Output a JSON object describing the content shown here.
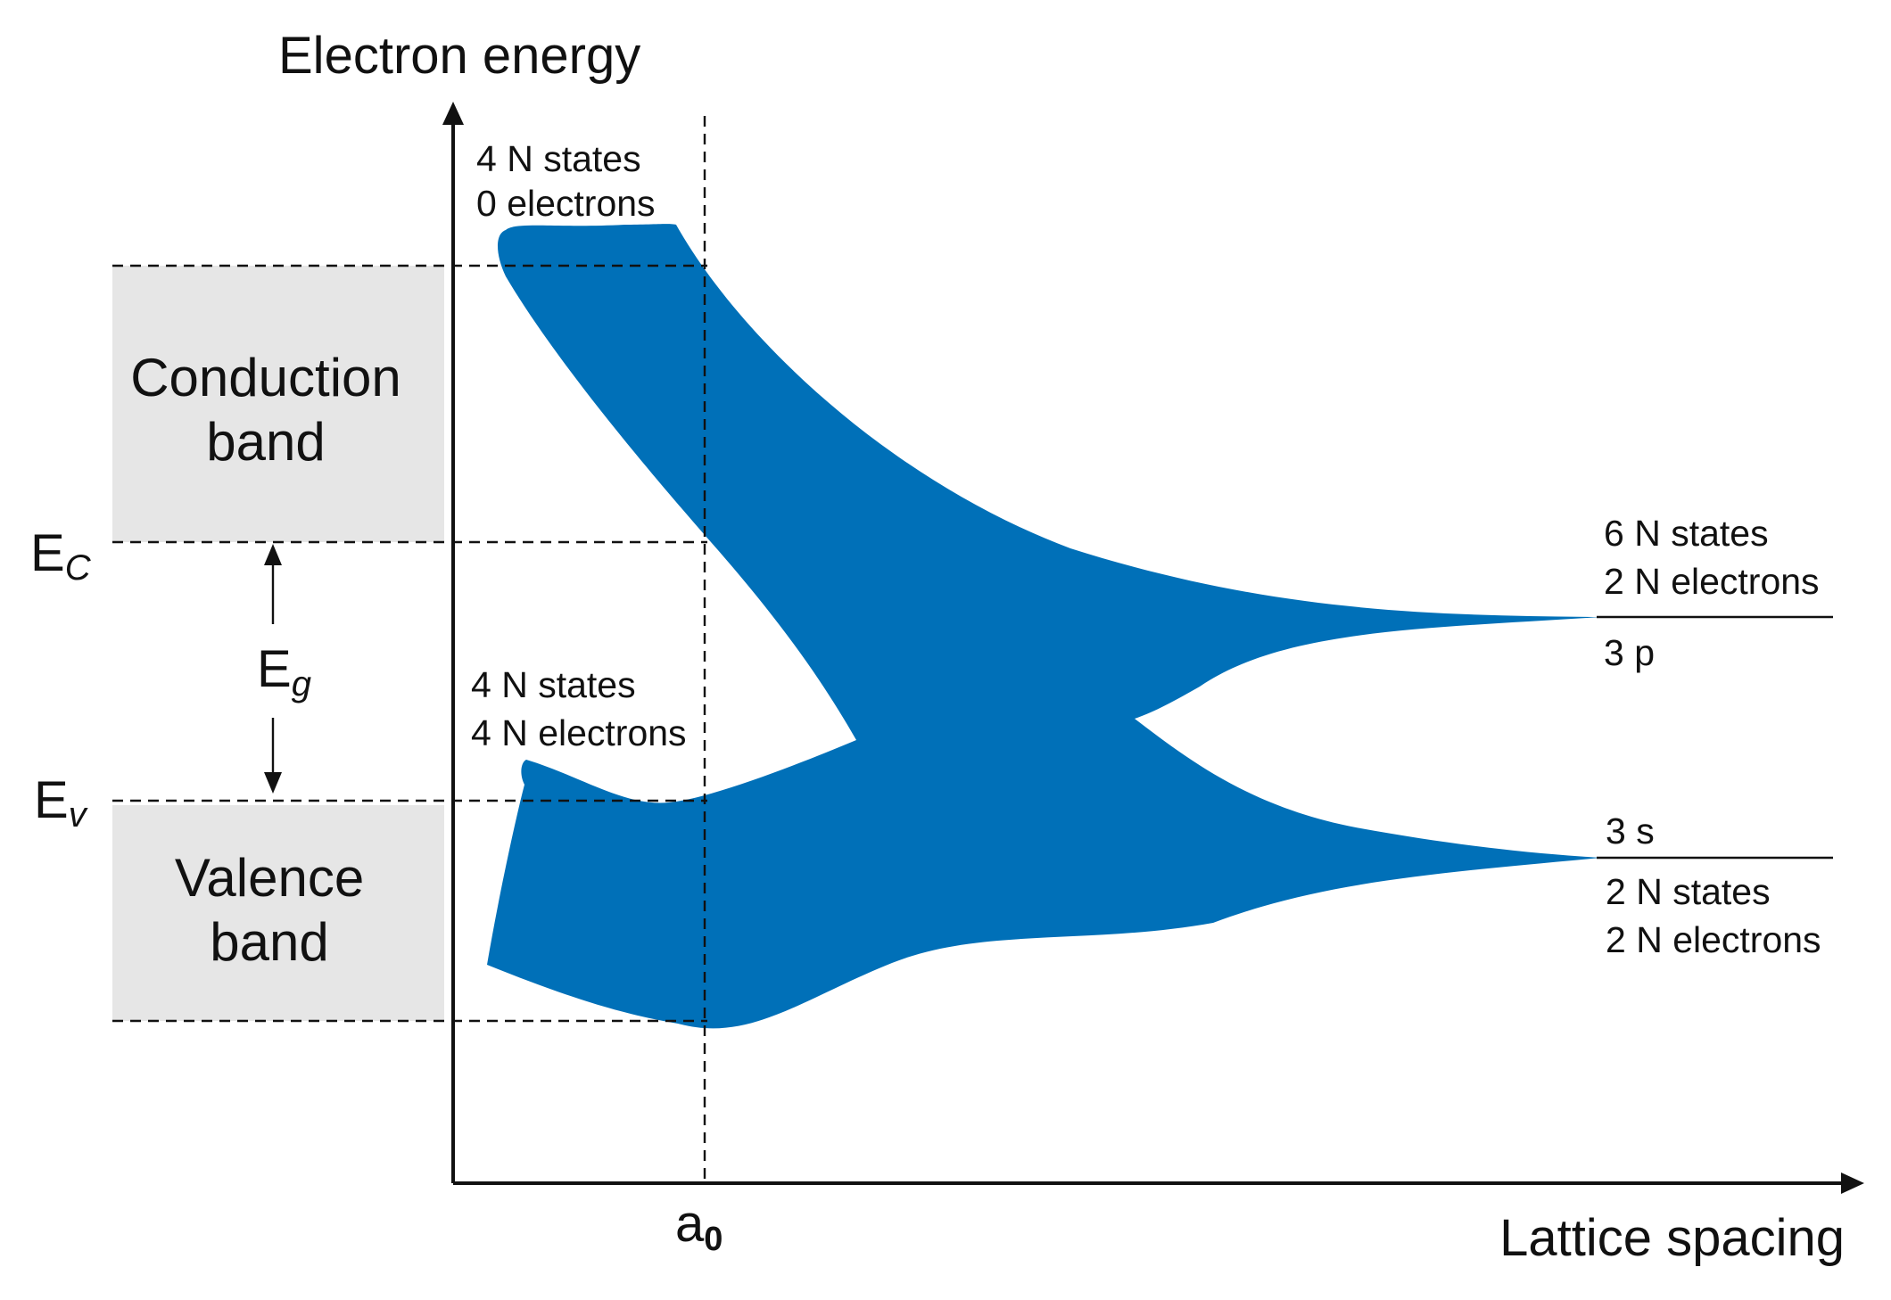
{
  "axes": {
    "y_label": "Electron energy",
    "x_label": "Lattice spacing",
    "x_marker": {
      "base": "a",
      "sub": "0"
    }
  },
  "levels": {
    "ec": {
      "base": "E",
      "sub": "C"
    },
    "ev": {
      "base": "E",
      "sub": "v"
    },
    "eg": {
      "base": "E",
      "sub": "g"
    }
  },
  "bands": {
    "conduction": {
      "line1": "Conduction",
      "line2": "band"
    },
    "valence": {
      "line1": "Valence",
      "line2": "band"
    }
  },
  "annotations": {
    "upper_band": {
      "line1": "4 N states",
      "line2": "0 electrons"
    },
    "lower_band": {
      "line1": "4 N states",
      "line2": "4 N electrons"
    },
    "level_3p": {
      "line1": "6 N states",
      "line2": "2 N electrons",
      "name": "3 p"
    },
    "level_3s": {
      "name": "3 s",
      "line1": "2 N states",
      "line2": "2 N electrons"
    }
  },
  "colors": {
    "band_fill": "#0070b8",
    "band_box": "#e6e6e6",
    "line": "#111111"
  }
}
